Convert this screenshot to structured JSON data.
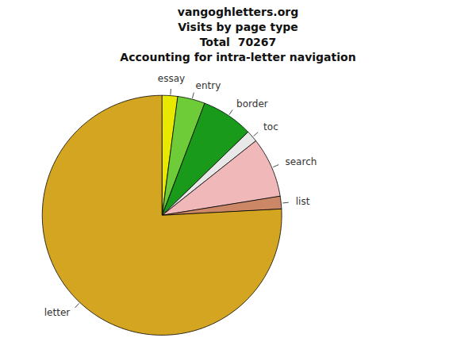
{
  "chart_data": {
    "type": "pie",
    "title": "vangoghletters.org\nVisits by page type\nTotal  70267\nAccounting for intra-letter navigation",
    "categories": [
      "essay",
      "entry",
      "border",
      "toc",
      "search",
      "list",
      "letter"
    ],
    "values": [
      1500,
      2600,
      4900,
      1100,
      5700,
      1200,
      53267
    ],
    "colors": [
      "#e8e800",
      "#6dcc38",
      "#1a9a1a",
      "#e8e8e8",
      "#f0b8b8",
      "#cc8866",
      "#d4a520"
    ]
  }
}
